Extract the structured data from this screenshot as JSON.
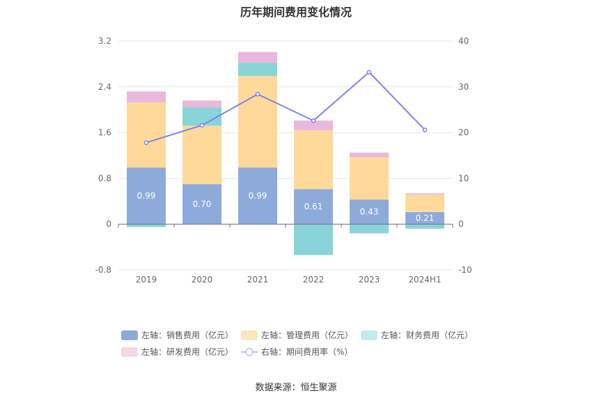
{
  "chart_data": {
    "type": "bar",
    "title": "历年期间费用变化情况",
    "categories": [
      "2019",
      "2020",
      "2021",
      "2022",
      "2023",
      "2024H1"
    ],
    "left_axis": {
      "ticks": [
        "-0.8",
        "0",
        "0.8",
        "1.6",
        "2.4",
        "3.2"
      ],
      "ylim": [
        -0.8,
        3.2
      ]
    },
    "right_axis": {
      "ticks": [
        "-10",
        "0",
        "10",
        "20",
        "30",
        "40"
      ],
      "ylim": [
        -10,
        40
      ]
    },
    "series": [
      {
        "name": "左轴：销售费用（亿元）",
        "type": "bar",
        "axis": "left",
        "color": "#8eaadb",
        "values": [
          0.99,
          0.7,
          0.99,
          0.61,
          0.43,
          0.21
        ],
        "labels": [
          "0.99",
          "0.70",
          "0.99",
          "0.61",
          "0.43",
          "0.21"
        ]
      },
      {
        "name": "左轴：管理费用（亿元）",
        "type": "bar",
        "axis": "left",
        "color": "#ffd99a",
        "values": [
          1.14,
          1.02,
          1.6,
          1.03,
          0.74,
          0.31
        ]
      },
      {
        "name": "左轴：财务费用（亿元）",
        "type": "bar",
        "axis": "left",
        "color": "#88d4d8",
        "values": [
          -0.05,
          0.32,
          0.23,
          -0.54,
          -0.16,
          -0.08
        ]
      },
      {
        "name": "左轴：研发费用（亿元）",
        "type": "bar",
        "axis": "left",
        "color": "#e8b9dc",
        "values": [
          0.19,
          0.12,
          0.19,
          0.17,
          0.08,
          0.02
        ]
      },
      {
        "name": "右轴：期间费用率（%）",
        "type": "line",
        "axis": "right",
        "color": "#7b83ee",
        "values": [
          17.8,
          21.6,
          28.4,
          22.6,
          33.2,
          20.6
        ]
      }
    ],
    "legend_position": "bottom",
    "grid": true
  },
  "source": "数据来源：恒生聚源"
}
